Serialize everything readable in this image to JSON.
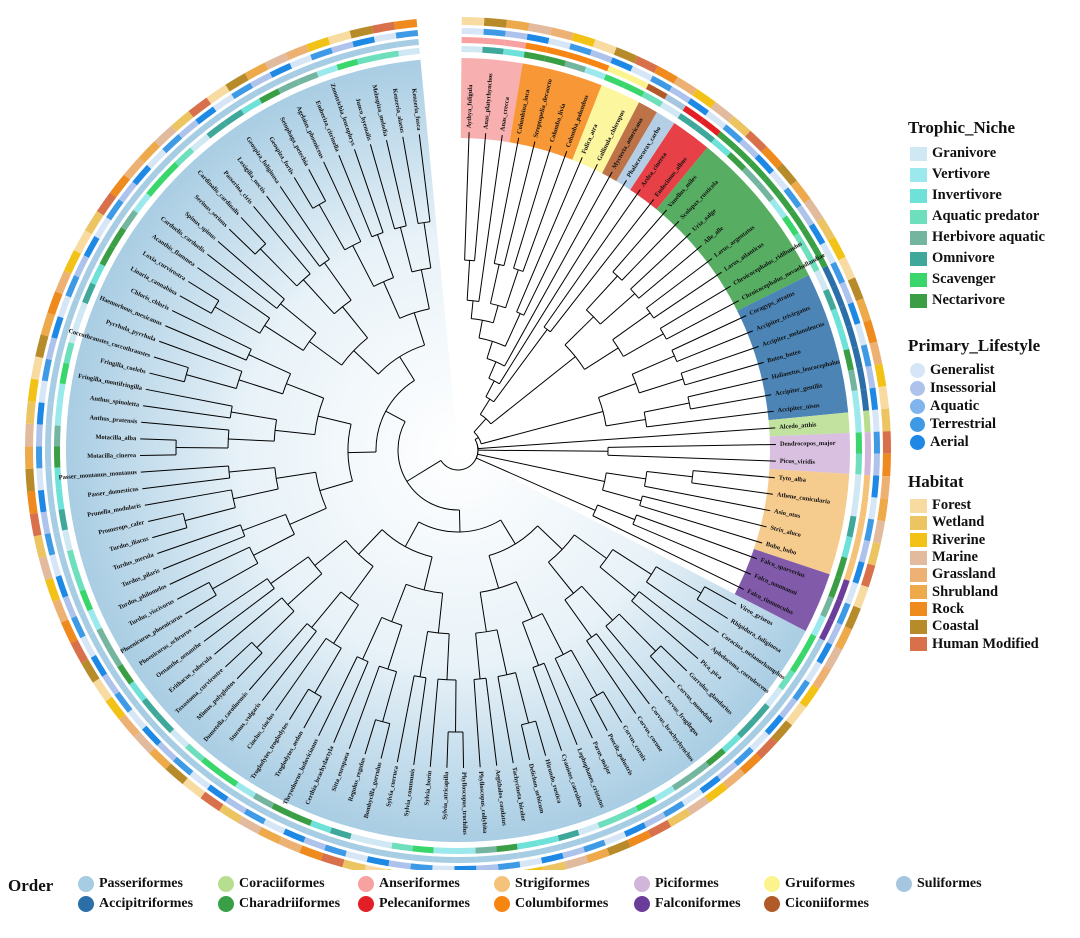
{
  "colors": {
    "background_gradient": [
      "#ffffff",
      "#e8f2f8",
      "#a9cde3"
    ],
    "branch": "#000000"
  },
  "legends": {
    "trophic": {
      "title": "Trophic_Niche",
      "items": [
        {
          "label": "Granivore",
          "color": "#cfe8f3"
        },
        {
          "label": "Vertivore",
          "color": "#9be9ec"
        },
        {
          "label": "Invertivore",
          "color": "#6ee2d8"
        },
        {
          "label": "Aquatic predator",
          "color": "#6edfbc"
        },
        {
          "label": "Herbivore aquatic",
          "color": "#74b59f"
        },
        {
          "label": "Omnivore",
          "color": "#3fa89a"
        },
        {
          "label": "Scavenger",
          "color": "#39d66b"
        },
        {
          "label": "Nectarivore",
          "color": "#3a9e45"
        }
      ]
    },
    "lifestyle": {
      "title": "Primary_Lifestyle",
      "items": [
        {
          "label": "Generalist",
          "color": "#d6e6f6"
        },
        {
          "label": "Insessorial",
          "color": "#aec3ec"
        },
        {
          "label": "Aquatic",
          "color": "#7fb5ec"
        },
        {
          "label": "Terrestrial",
          "color": "#3f9ae6"
        },
        {
          "label": "Aerial",
          "color": "#1e88e5"
        }
      ]
    },
    "habitat": {
      "title": "Habitat",
      "items": [
        {
          "label": "Forest",
          "color": "#f8dba0"
        },
        {
          "label": "Wetland",
          "color": "#ecc462"
        },
        {
          "label": "Riverine",
          "color": "#f2c316"
        },
        {
          "label": "Marine",
          "color": "#e2bb9e"
        },
        {
          "label": "Grassland",
          "color": "#eeb174"
        },
        {
          "label": "Shrubland",
          "color": "#eda94a"
        },
        {
          "label": "Rock",
          "color": "#ee8a1e"
        },
        {
          "label": "Coastal",
          "color": "#b78a2a"
        },
        {
          "label": "Human Modified",
          "color": "#d8704c"
        }
      ]
    },
    "order": {
      "title": "Order",
      "items": [
        {
          "label": "Passeriformes",
          "color": "#a6cde3"
        },
        {
          "label": "Coraciiformes",
          "color": "#b7de8e"
        },
        {
          "label": "Anseriformes",
          "color": "#f7a1a1"
        },
        {
          "label": "Strigiformes",
          "color": "#f5c27a"
        },
        {
          "label": "Piciformes",
          "color": "#d2b5da"
        },
        {
          "label": "Gruiformes",
          "color": "#fbf48e"
        },
        {
          "label": "Suliformes",
          "color": "#a6c6e0"
        },
        {
          "label": "Accipitriformes",
          "color": "#2c6ea8"
        },
        {
          "label": "Charadriiformes",
          "color": "#39a046"
        },
        {
          "label": "Pelecaniformes",
          "color": "#e31f26"
        },
        {
          "label": "Columbiformes",
          "color": "#f78512"
        },
        {
          "label": "Falconiformes",
          "color": "#6b3d9a"
        },
        {
          "label": "Ciconiiformes",
          "color": "#b15928"
        }
      ]
    }
  },
  "order_colors": {
    "Anseriformes": "#f7a1a1",
    "Columbiformes": "#f78512",
    "Gruiformes": "#fbf48e",
    "Ciconiiformes": "#b15928",
    "Suliformes": "#a6c6e0",
    "Pelecaniformes": "#e31f26",
    "Charadriiformes": "#39a046",
    "Accipitriformes": "#2c6ea8",
    "Coraciiformes": "#b7de8e",
    "Piciformes": "#d2b5da",
    "Strigiformes": "#f5c27a",
    "Falconiformes": "#6b3d9a",
    "Passeriformes": "#a6cde3"
  },
  "species": [
    {
      "name": "Aythya_fuligula",
      "order": "Anseriformes"
    },
    {
      "name": "Anas_platyrhynchos",
      "order": "Anseriformes"
    },
    {
      "name": "Anas_crecca",
      "order": "Anseriformes"
    },
    {
      "name": "Columbina_inca",
      "order": "Columbiformes"
    },
    {
      "name": "Streptopelia_decaocto",
      "order": "Columbiformes"
    },
    {
      "name": "Columba_livia",
      "order": "Columbiformes"
    },
    {
      "name": "Columba_palumbus",
      "order": "Columbiformes"
    },
    {
      "name": "Fulica_atra",
      "order": "Gruiformes"
    },
    {
      "name": "Gallinula_chloropus",
      "order": "Gruiformes"
    },
    {
      "name": "Mycteria_americana",
      "order": "Ciconiiformes"
    },
    {
      "name": "Phalacrocorax_carbo",
      "order": "Suliformes"
    },
    {
      "name": "Ardea_cinerea",
      "order": "Pelecaniformes"
    },
    {
      "name": "Eudocimus_albus",
      "order": "Pelecaniformes"
    },
    {
      "name": "Vanellus_miles",
      "order": "Charadriiformes"
    },
    {
      "name": "Scolopax_rusticola",
      "order": "Charadriiformes"
    },
    {
      "name": "Uria_aalge",
      "order": "Charadriiformes"
    },
    {
      "name": "Alle_alle",
      "order": "Charadriiformes"
    },
    {
      "name": "Larus_argentatus",
      "order": "Charadriiformes"
    },
    {
      "name": "Larus_atlanticus",
      "order": "Charadriiformes"
    },
    {
      "name": "Chroicocephalus_ridibundus",
      "order": "Charadriiformes"
    },
    {
      "name": "Chroicocephalus_novaehollandiae",
      "order": "Charadriiformes"
    },
    {
      "name": "Coragyps_atratus",
      "order": "Accipitriformes"
    },
    {
      "name": "Accipiter_trivirgatus",
      "order": "Accipitriformes"
    },
    {
      "name": "Accipiter_melanoleucus",
      "order": "Accipitriformes"
    },
    {
      "name": "Buteo_buteo",
      "order": "Accipitriformes"
    },
    {
      "name": "Haliaeetus_leucocephalus",
      "order": "Accipitriformes"
    },
    {
      "name": "Accipiter_gentilis",
      "order": "Accipitriformes"
    },
    {
      "name": "Accipiter_nisus",
      "order": "Accipitriformes"
    },
    {
      "name": "Alcedo_atthis",
      "order": "Coraciiformes"
    },
    {
      "name": "Dendrocopos_major",
      "order": "Piciformes"
    },
    {
      "name": "Picus_viridis",
      "order": "Piciformes"
    },
    {
      "name": "Tyto_alba",
      "order": "Strigiformes"
    },
    {
      "name": "Athene_cunicularia",
      "order": "Strigiformes"
    },
    {
      "name": "Asio_otus",
      "order": "Strigiformes"
    },
    {
      "name": "Strix_aluco",
      "order": "Strigiformes"
    },
    {
      "name": "Bubo_bubo",
      "order": "Strigiformes"
    },
    {
      "name": "Falco_sparverius",
      "order": "Falconiformes"
    },
    {
      "name": "Falco_naumanni",
      "order": "Falconiformes"
    },
    {
      "name": "Falco_tinnunculus",
      "order": "Falconiformes"
    },
    {
      "name": "Vireo_griseus",
      "order": "Passeriformes"
    },
    {
      "name": "Rhipidura_fuliginosa",
      "order": "Passeriformes"
    },
    {
      "name": "Coracina_melanorhamphos",
      "order": "Passeriformes"
    },
    {
      "name": "Aphelocoma_coerulescens",
      "order": "Passeriformes"
    },
    {
      "name": "Pica_pica",
      "order": "Passeriformes"
    },
    {
      "name": "Garrulus_glandarius",
      "order": "Passeriformes"
    },
    {
      "name": "Corvus_monedula",
      "order": "Passeriformes"
    },
    {
      "name": "Corvus_frugilegus",
      "order": "Passeriformes"
    },
    {
      "name": "Corvus_brachyrhynchos",
      "order": "Passeriformes"
    },
    {
      "name": "Corvus_corone",
      "order": "Passeriformes"
    },
    {
      "name": "Corvus_cornix",
      "order": "Passeriformes"
    },
    {
      "name": "Poecile_palustris",
      "order": "Passeriformes"
    },
    {
      "name": "Parus_major",
      "order": "Passeriformes"
    },
    {
      "name": "Lophophanes_cristatus",
      "order": "Passeriformes"
    },
    {
      "name": "Cyanistes_caeruleus",
      "order": "Passeriformes"
    },
    {
      "name": "Hirundo_rustica",
      "order": "Passeriformes"
    },
    {
      "name": "Delichon_urbicum",
      "order": "Passeriformes"
    },
    {
      "name": "Tachycineta_bicolor",
      "order": "Passeriformes"
    },
    {
      "name": "Aegithalos_caudatus",
      "order": "Passeriformes"
    },
    {
      "name": "Phylloscopus_collybita",
      "order": "Passeriformes"
    },
    {
      "name": "Phylloscopus_trochilus",
      "order": "Passeriformes"
    },
    {
      "name": "Sylvia_atricapilla",
      "order": "Passeriformes"
    },
    {
      "name": "Sylvia_borin",
      "order": "Passeriformes"
    },
    {
      "name": "Sylvia_communis",
      "order": "Passeriformes"
    },
    {
      "name": "Sylvia_curruca",
      "order": "Passeriformes"
    },
    {
      "name": "Bombycilla_garrulus",
      "order": "Passeriformes"
    },
    {
      "name": "Regulus_regulus",
      "order": "Passeriformes"
    },
    {
      "name": "Sitta_europaea",
      "order": "Passeriformes"
    },
    {
      "name": "Certhia_brachydactyla",
      "order": "Passeriformes"
    },
    {
      "name": "Thryothorus_ludovicianus",
      "order": "Passeriformes"
    },
    {
      "name": "Troglodytes_aedon",
      "order": "Passeriformes"
    },
    {
      "name": "Troglodytes_troglodytes",
      "order": "Passeriformes"
    },
    {
      "name": "Cinclus_cinclus",
      "order": "Passeriformes"
    },
    {
      "name": "Sturnus_vulgaris",
      "order": "Passeriformes"
    },
    {
      "name": "Dumetella_carolinensis",
      "order": "Passeriformes"
    },
    {
      "name": "Mimus_polyglottos",
      "order": "Passeriformes"
    },
    {
      "name": "Toxostoma_curvirostre",
      "order": "Passeriformes"
    },
    {
      "name": "Erithacus_rubecula",
      "order": "Passeriformes"
    },
    {
      "name": "Oenanthe_oenanthe",
      "order": "Passeriformes"
    },
    {
      "name": "Phoenicurus_ochruros",
      "order": "Passeriformes"
    },
    {
      "name": "Phoenicurus_phoenicurus",
      "order": "Passeriformes"
    },
    {
      "name": "Turdus_viscivorus",
      "order": "Passeriformes"
    },
    {
      "name": "Turdus_philomelos",
      "order": "Passeriformes"
    },
    {
      "name": "Turdus_pilaris",
      "order": "Passeriformes"
    },
    {
      "name": "Turdus_merula",
      "order": "Passeriformes"
    },
    {
      "name": "Turdus_iliacus",
      "order": "Passeriformes"
    },
    {
      "name": "Promerops_cafer",
      "order": "Passeriformes"
    },
    {
      "name": "Prunella_modularis",
      "order": "Passeriformes"
    },
    {
      "name": "Passer_domesticus",
      "order": "Passeriformes"
    },
    {
      "name": "Passer_montanus_montanus",
      "order": "Passeriformes"
    },
    {
      "name": "Motacilla_cinerea",
      "order": "Passeriformes"
    },
    {
      "name": "Motacilla_alba",
      "order": "Passeriformes"
    },
    {
      "name": "Anthus_pratensis",
      "order": "Passeriformes"
    },
    {
      "name": "Anthus_spinoletta",
      "order": "Passeriformes"
    },
    {
      "name": "Fringilla_montifringilla",
      "order": "Passeriformes"
    },
    {
      "name": "Fringilla_coelebs",
      "order": "Passeriformes"
    },
    {
      "name": "Coccothraustes_coccothraustes",
      "order": "Passeriformes"
    },
    {
      "name": "Pyrrhula_pyrrhula",
      "order": "Passeriformes"
    },
    {
      "name": "Haemorhous_mexicanus",
      "order": "Passeriformes"
    },
    {
      "name": "Chloris_chloris",
      "order": "Passeriformes"
    },
    {
      "name": "Linaria_cannabina",
      "order": "Passeriformes"
    },
    {
      "name": "Loxia_curvirostra",
      "order": "Passeriformes"
    },
    {
      "name": "Acanthis_flammea",
      "order": "Passeriformes"
    },
    {
      "name": "Carduelis_carduelis",
      "order": "Passeriformes"
    },
    {
      "name": "Spinus_spinus",
      "order": "Passeriformes"
    },
    {
      "name": "Serinus_serinus",
      "order": "Passeriformes"
    },
    {
      "name": "Cardinalis_cardinalis",
      "order": "Passeriformes"
    },
    {
      "name": "Passerina_ciris",
      "order": "Passeriformes"
    },
    {
      "name": "Loxigilla_noctis",
      "order": "Passeriformes"
    },
    {
      "name": "Geospiza_fuliginosa",
      "order": "Passeriformes"
    },
    {
      "name": "Geospiza_fortis",
      "order": "Passeriformes"
    },
    {
      "name": "Setophaga_petechia",
      "order": "Passeriformes"
    },
    {
      "name": "Agelaius_phoeniceus",
      "order": "Passeriformes"
    },
    {
      "name": "Emberiza_citrinella",
      "order": "Passeriformes"
    },
    {
      "name": "Zonotrichia_leucophrys",
      "order": "Passeriformes"
    },
    {
      "name": "Junco_hyemalis",
      "order": "Passeriformes"
    },
    {
      "name": "Melospiza_melodia",
      "order": "Passeriformes"
    },
    {
      "name": "Kenzeria_alaeus",
      "order": "Passeriformes"
    },
    {
      "name": "Kenzeria_fusca",
      "order": "Passeriformes"
    }
  ]
}
